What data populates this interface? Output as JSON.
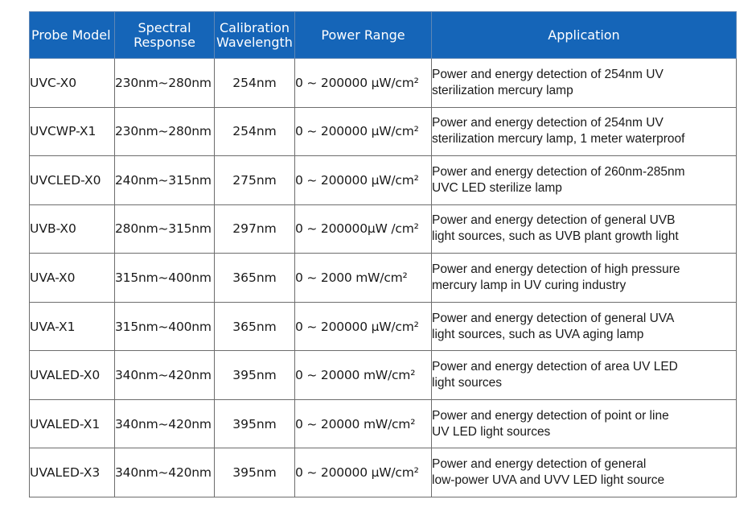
{
  "header": {
    "probe_model": "Probe Model",
    "spectral_response": [
      "Spectral",
      "Response"
    ],
    "calibration_wavelength": [
      "Calibration",
      "Wavelength"
    ],
    "power_range": "Power Range",
    "application": "Application"
  },
  "rows": [
    {
      "model": "UVC-X0",
      "spectral": "230nm~280nm",
      "calibration": "254nm",
      "power": "0 ~ 200000 μW/cm²",
      "application": [
        "Power and energy detection of 254nm UV",
        "sterilization mercury lamp"
      ]
    },
    {
      "model": "UVCWP-X1",
      "spectral": "230nm~280nm",
      "calibration": "254nm",
      "power": "0 ~ 200000 μW/cm²",
      "application": [
        "Power and energy detection of 254nm UV",
        "sterilization mercury lamp, 1 meter waterproof"
      ]
    },
    {
      "model": "UVCLED-X0",
      "spectral": "240nm~315nm",
      "calibration": "275nm",
      "power": "0 ~ 200000 μW/cm²",
      "application": [
        "Power and energy detection of 260nm-285nm",
        "UVC LED sterilize lamp"
      ]
    },
    {
      "model": "UVB-X0",
      "spectral": "280nm~315nm",
      "calibration": "297nm",
      "power": "0 ~ 200000μW /cm²",
      "application": [
        "Power and energy detection of general UVB",
        "light sources, such as UVB plant growth light"
      ]
    },
    {
      "model": "UVA-X0",
      "spectral": "315nm~400nm",
      "calibration": "365nm",
      "power": "0 ~ 2000 mW/cm²",
      "application": [
        "Power and energy detection of high pressure",
        "mercury lamp in UV curing industry"
      ]
    },
    {
      "model": "UVA-X1",
      "spectral": "315nm~400nm",
      "calibration": "365nm",
      "power": "0 ~ 200000 μW/cm²",
      "application": [
        "Power and energy detection of general UVA",
        "light sources, such as UVA aging lamp"
      ]
    },
    {
      "model": "UVALED-X0",
      "spectral": "340nm~420nm",
      "calibration": "395nm",
      "power": "0 ~ 20000 mW/cm²",
      "application": [
        "Power and energy detection of area UV LED",
        "light sources"
      ]
    },
    {
      "model": "UVALED-X1",
      "spectral": "340nm~420nm",
      "calibration": "395nm",
      "power": "0 ~ 20000 mW/cm²",
      "application": [
        "Power and energy detection of point or line",
        "UV LED light sources"
      ]
    },
    {
      "model": "UVALED-X3",
      "spectral": "340nm~420nm",
      "calibration": "395nm",
      "power": "0 ~ 200000 μW/cm²",
      "application": [
        "Power and energy detection of general",
        "low-power UVA and UVV LED light source"
      ]
    }
  ]
}
